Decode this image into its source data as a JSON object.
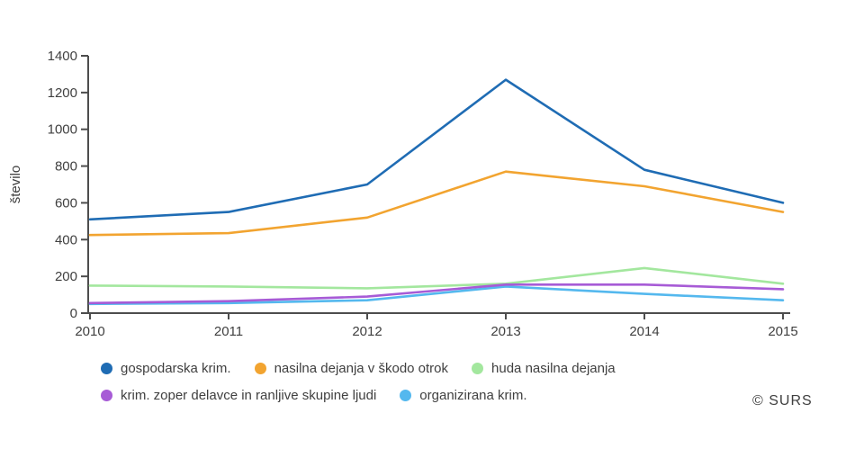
{
  "chart": {
    "y_axis_label": "število",
    "copyright": "© SURS"
  },
  "chart_data": {
    "type": "line",
    "title": "",
    "xlabel": "",
    "ylabel": "število",
    "x": [
      "2010",
      "2011",
      "2012",
      "2013",
      "2014",
      "2015"
    ],
    "series": [
      {
        "name": "gospodarska krim.",
        "color": "#1f6cb4",
        "values": [
          510,
          550,
          700,
          1270,
          780,
          600
        ]
      },
      {
        "name": "nasilna dejanja v škodo otrok",
        "color": "#f2a430",
        "values": [
          425,
          435,
          520,
          770,
          690,
          550
        ]
      },
      {
        "name": "huda nasilna dejanja",
        "color": "#a3e79e",
        "values": [
          150,
          145,
          135,
          160,
          245,
          160
        ]
      },
      {
        "name": "krim. zoper delavce in ranljive skupine ljudi",
        "color": "#a75bd6",
        "values": [
          55,
          65,
          90,
          155,
          155,
          130
        ]
      },
      {
        "name": "organizirana krim.",
        "color": "#54b8ee",
        "values": [
          50,
          55,
          70,
          145,
          105,
          70
        ]
      }
    ],
    "ylim": [
      0,
      1400
    ],
    "y_ticks": [
      0,
      200,
      400,
      600,
      800,
      1000,
      1200,
      1400
    ],
    "grid": false,
    "legend_position": "bottom",
    "annotations": [
      "© SURS"
    ]
  }
}
